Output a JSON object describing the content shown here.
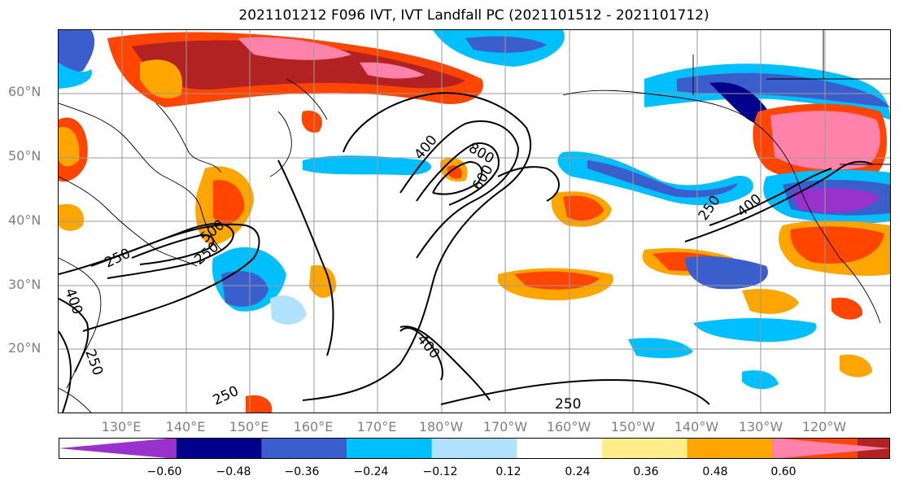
{
  "title": "2021101212 F096 IVT, IVT Landfall PC (2021101512 - 2021101712)",
  "lat_labels": [
    "60°N",
    "50°N",
    "40°N",
    "30°N",
    "20°N"
  ],
  "lon_labels": [
    "130°E",
    "140°E",
    "150°E",
    "160°E",
    "170°E",
    "180°W",
    "170°W",
    "160°W",
    "150°W",
    "140°W",
    "130°W",
    "120°W"
  ],
  "colorbar": {
    "colors": [
      "#9932CC",
      "#00008B",
      "#3A5FCD",
      "#00BFFF",
      "#B0E2FF",
      "#FFFFFF",
      "#FFEC8B",
      "#FFA500",
      "#FF4500",
      "#B22222",
      "#FF82AB"
    ],
    "tick_labels": [
      "−0.60",
      "−0.48",
      "−0.36",
      "−0.24",
      "−0.12",
      "0.12",
      "0.24",
      "0.36",
      "0.48",
      "0.60"
    ]
  },
  "contour_labels": [
    "400",
    "800",
    "600",
    "250",
    "500",
    "250",
    "400",
    "400",
    "250",
    "250",
    "250",
    "250",
    "400"
  ]
}
